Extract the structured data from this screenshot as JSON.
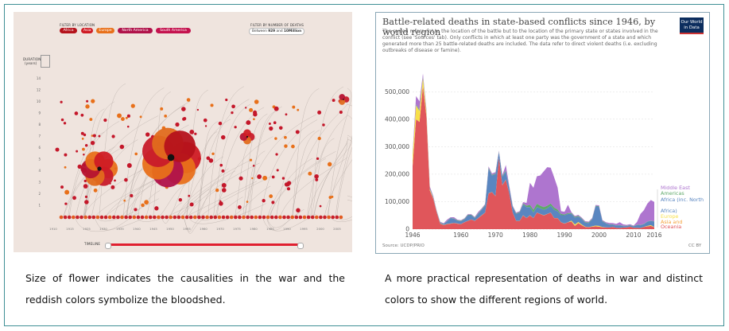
{
  "left_viz": {
    "filter_location_label": "FILTER BY LOCATION",
    "filter_deaths_label": "FILTER BY NUMBER OF DEATHS",
    "locations": [
      {
        "label": "Africa",
        "color": "#b5121b"
      },
      {
        "label": "Asia",
        "color": "#cf1b24"
      },
      {
        "label": "Europe",
        "color": "#e8701a"
      },
      {
        "label": "North America",
        "color": "#b0124a"
      },
      {
        "label": "South America",
        "color": "#c4124e"
      }
    ],
    "deaths_range": {
      "prefix": "Between",
      "min": "929",
      "mid": "and",
      "max": "10Million"
    },
    "duration_label": "DURATION",
    "duration_unit": "(years)",
    "y_ticks": [
      "14",
      "12",
      "10",
      "9",
      "8",
      "7",
      "6",
      "5",
      "4",
      "3",
      "2",
      "1"
    ],
    "x_ticks": [
      "1910",
      "1915",
      "1925",
      "1930",
      "1935",
      "1940",
      "1945",
      "1950",
      "1955",
      "1960",
      "1970",
      "1975",
      "1980",
      "1985",
      "1990",
      "1995",
      "2000",
      "2005"
    ],
    "timeline_label": "TIMELINE"
  },
  "right_chart_header": {
    "title": "Battle-related deaths in state-based conflicts since 1946, by world region",
    "subtitle": "The region refers not to the location of the battle but to the location of the primary state or states involved in the conflict (see 'Sources' tab). Only conflicts in which at least one party was the government of a state and which generated more than 25 battle-related deaths are included. The data refer to direct violent deaths (i.e. excluding outbreaks of disease or famine).",
    "logo_line1": "Our World",
    "logo_line2": "in Data",
    "source": "Source: UCDP/PRIO",
    "license": "CC BY"
  },
  "chart_data": {
    "type": "area",
    "title": "Battle-related deaths in state-based conflicts since 1946, by world region",
    "xlabel": "",
    "ylabel": "",
    "ylim": [
      0,
      550000
    ],
    "xlim": [
      1946,
      2016
    ],
    "x_ticks": [
      "1946",
      "1960",
      "1970",
      "1980",
      "1990",
      "2000",
      "2010",
      "2016"
    ],
    "y_ticks": [
      "0",
      "100,000",
      "200,000",
      "300,000",
      "400,000",
      "500,000"
    ],
    "x": [
      1946,
      1947,
      1948,
      1949,
      1950,
      1951,
      1952,
      1953,
      1954,
      1955,
      1956,
      1957,
      1958,
      1959,
      1960,
      1961,
      1962,
      1963,
      1964,
      1965,
      1966,
      1967,
      1968,
      1969,
      1970,
      1971,
      1972,
      1973,
      1974,
      1975,
      1976,
      1977,
      1978,
      1979,
      1980,
      1981,
      1982,
      1983,
      1984,
      1985,
      1986,
      1987,
      1988,
      1989,
      1990,
      1991,
      1992,
      1993,
      1994,
      1995,
      1996,
      1997,
      1998,
      1999,
      2000,
      2001,
      2002,
      2003,
      2004,
      2005,
      2006,
      2007,
      2008,
      2009,
      2010,
      2011,
      2012,
      2013,
      2014,
      2015,
      2016
    ],
    "series": [
      {
        "name": "Oceania",
        "color": "#e0565b",
        "values": [
          230000,
          400000,
          390000,
          520000,
          410000,
          140000,
          110000,
          60000,
          20000,
          15000,
          18000,
          20000,
          22000,
          20000,
          18000,
          25000,
          30000,
          35000,
          30000,
          40000,
          50000,
          60000,
          130000,
          135000,
          120000,
          260000,
          160000,
          180000,
          130000,
          60000,
          30000,
          30000,
          50000,
          40000,
          50000,
          40000,
          60000,
          55000,
          50000,
          55000,
          60000,
          40000,
          40000,
          25000,
          20000,
          25000,
          28000,
          12000,
          22000,
          14000,
          8000,
          7000,
          9000,
          10000,
          9000,
          7000,
          6000,
          6000,
          8000,
          5000,
          4000,
          6000,
          6000,
          9000,
          5000,
          5000,
          4000,
          8000,
          10000,
          12000,
          7000
        ]
      },
      {
        "name": "Asia and Oceania",
        "color": "#f4a13a",
        "values": [
          0,
          0,
          0,
          0,
          0,
          0,
          0,
          0,
          0,
          0,
          0,
          0,
          0,
          0,
          0,
          0,
          0,
          0,
          0,
          0,
          0,
          0,
          0,
          0,
          0,
          0,
          0,
          0,
          0,
          0,
          0,
          0,
          0,
          0,
          0,
          0,
          0,
          0,
          0,
          0,
          0,
          0,
          0,
          0,
          0,
          0,
          0,
          0,
          0,
          0,
          0,
          0,
          0,
          0,
          0,
          0,
          0,
          0,
          0,
          0,
          0,
          0,
          0,
          0,
          0,
          0,
          0,
          0,
          0,
          0,
          0
        ]
      },
      {
        "name": "Europe",
        "color": "#f7e04a",
        "values": [
          40000,
          50000,
          40000,
          30000,
          15000,
          5000,
          2000,
          1000,
          800,
          700,
          700,
          600,
          600,
          500,
          500,
          500,
          500,
          500,
          500,
          500,
          500,
          500,
          500,
          500,
          500,
          500,
          500,
          500,
          500,
          500,
          500,
          500,
          500,
          500,
          500,
          500,
          500,
          500,
          500,
          500,
          500,
          500,
          500,
          500,
          500,
          500,
          3000,
          5000,
          4000,
          3000,
          1000,
          500,
          1500,
          3000,
          3000,
          1000,
          500,
          300,
          200,
          200,
          200,
          200,
          600,
          200,
          200,
          200,
          200,
          200,
          2000,
          3000,
          1000
        ]
      },
      {
        "name": "Africa (inc. North Africa)",
        "color": "#5a86c0",
        "values": [
          1000,
          2000,
          2000,
          3000,
          3000,
          4000,
          4000,
          3000,
          3000,
          3000,
          10000,
          20000,
          15000,
          10000,
          10000,
          10000,
          20000,
          15000,
          10000,
          15000,
          20000,
          25000,
          90000,
          60000,
          80000,
          20000,
          30000,
          30000,
          20000,
          20000,
          25000,
          30000,
          40000,
          40000,
          30000,
          20000,
          20000,
          20000,
          20000,
          20000,
          25000,
          30000,
          25000,
          25000,
          30000,
          30000,
          25000,
          25000,
          20000,
          20000,
          15000,
          15000,
          25000,
          70000,
          70000,
          20000,
          15000,
          10000,
          8000,
          8000,
          10000,
          5000,
          5000,
          5000,
          5000,
          10000,
          10000,
          10000,
          15000,
          15000,
          20000
        ]
      },
      {
        "name": "Americas",
        "color": "#5fa969",
        "values": [
          2000,
          2000,
          3000,
          3000,
          2000,
          1000,
          1000,
          1000,
          1000,
          1000,
          1000,
          1000,
          1000,
          2000,
          2000,
          2000,
          2000,
          2000,
          2000,
          2000,
          2000,
          3000,
          3000,
          2000,
          2000,
          2000,
          3000,
          3000,
          2000,
          2000,
          2000,
          2000,
          3000,
          5000,
          8000,
          10000,
          12000,
          10000,
          10000,
          10000,
          8000,
          8000,
          6000,
          5000,
          3000,
          3000,
          3000,
          3000,
          3000,
          2000,
          2000,
          2000,
          2000,
          2000,
          2000,
          2000,
          1000,
          1000,
          1000,
          1000,
          1000,
          1000,
          1000,
          1000,
          1000,
          1000,
          1000,
          1000,
          1000,
          1000,
          1000
        ]
      },
      {
        "name": "Middle East",
        "color": "#ae75cf",
        "values": [
          5000,
          30000,
          30000,
          10000,
          8000,
          5000,
          3000,
          2000,
          2000,
          2000,
          5000,
          2000,
          5000,
          2000,
          2000,
          2000,
          2000,
          2000,
          2000,
          5000,
          3000,
          3000,
          5000,
          5000,
          5000,
          3000,
          3000,
          20000,
          5000,
          3000,
          3000,
          3000,
          5000,
          10000,
          80000,
          80000,
          100000,
          110000,
          130000,
          140000,
          130000,
          110000,
          80000,
          10000,
          10000,
          30000,
          3000,
          3000,
          3000,
          3000,
          3000,
          3000,
          3000,
          3000,
          3000,
          3000,
          3000,
          5000,
          5000,
          5000,
          10000,
          5000,
          3000,
          3000,
          2000,
          10000,
          40000,
          50000,
          65000,
          75000,
          70000
        ]
      }
    ]
  }
}
